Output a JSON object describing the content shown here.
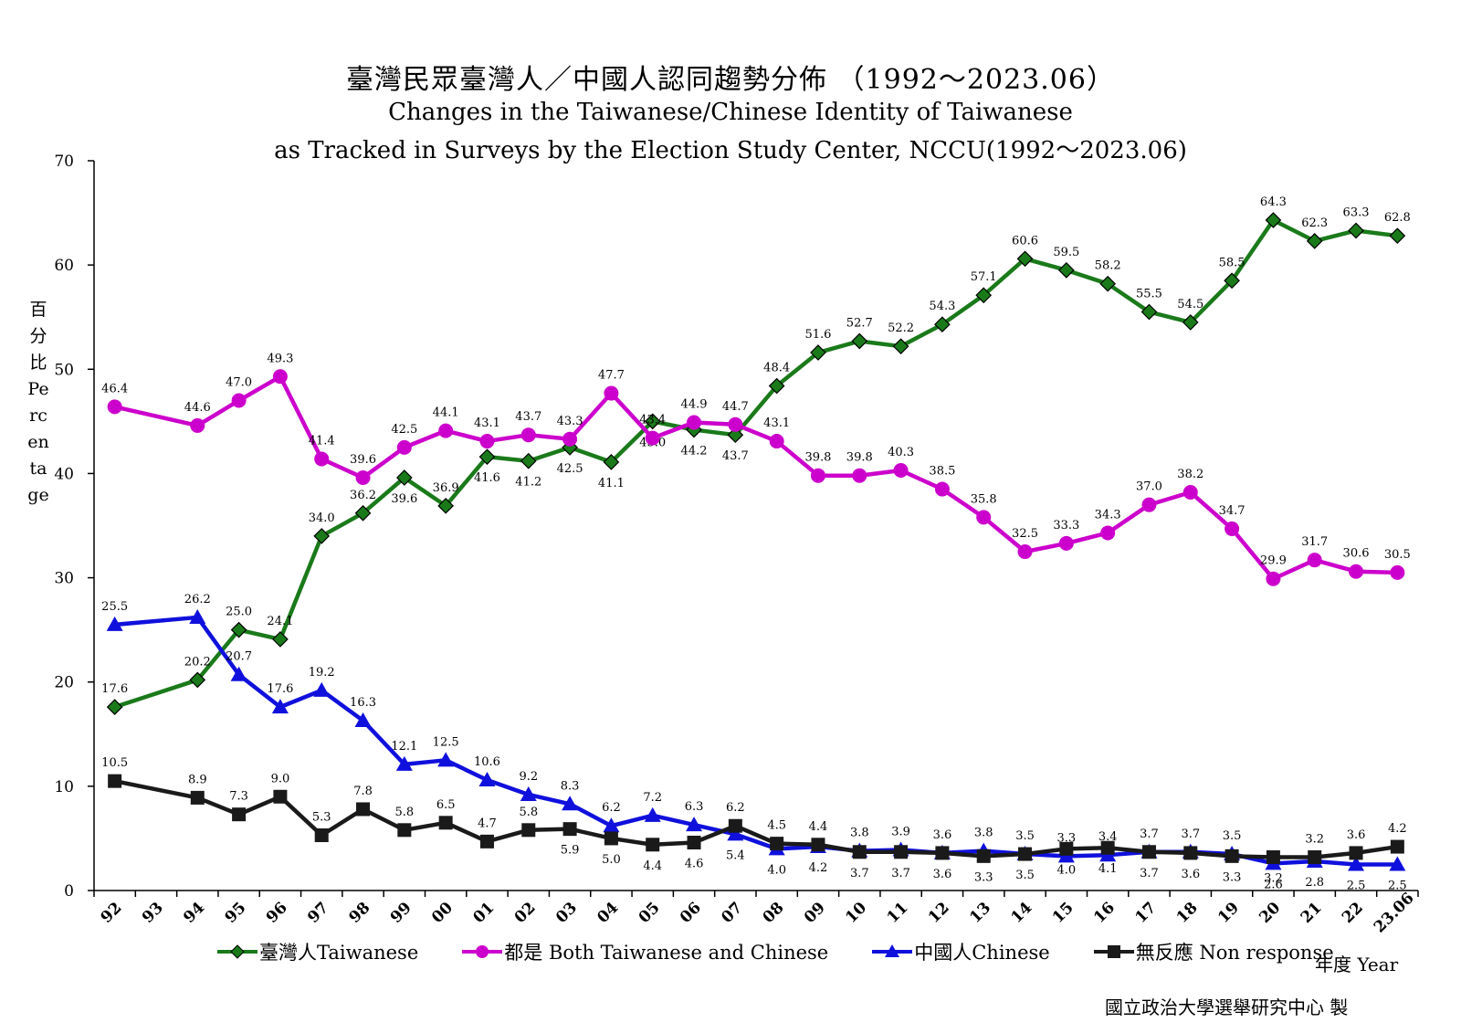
{
  "title": {
    "line1": "臺灣民眾臺灣人／中國人認同趨勢分佈 （1992～2023.06）",
    "line2": "Changes in the Taiwanese/Chinese Identity of Taiwanese",
    "line3": "as Tracked in Surveys by the Election Study Center, NCCU(1992～2023.06)"
  },
  "ylabel": "百分比Percentage",
  "xlabel": "年度 Year",
  "credit": "國立政治大學選舉研究中心 製",
  "chart_data": {
    "type": "line",
    "title": "臺灣民眾臺灣人／中國人認同趨勢分佈 （1992～2023.06）",
    "xlabel": "年度 Year",
    "ylabel": "百分比Percentage",
    "categories": [
      "92",
      "93",
      "94",
      "95",
      "96",
      "97",
      "98",
      "99",
      "00",
      "01",
      "02",
      "03",
      "04",
      "05",
      "06",
      "07",
      "08",
      "09",
      "10",
      "11",
      "12",
      "13",
      "14",
      "15",
      "16",
      "17",
      "18",
      "19",
      "20",
      "21",
      "22",
      "23.06"
    ],
    "ylim": [
      0,
      70
    ],
    "yticks": [
      "0",
      "10",
      "20",
      "30",
      "40",
      "50",
      "60",
      "70"
    ],
    "grid": false,
    "legend_position": "bottom",
    "series": [
      {
        "name": "臺灣人Taiwanese",
        "color": "#1a7a1a",
        "marker": "diamond",
        "values": [
          17.6,
          null,
          20.2,
          25.0,
          24.1,
          34.0,
          36.2,
          39.6,
          36.9,
          41.6,
          41.2,
          42.5,
          41.1,
          45.0,
          44.2,
          43.7,
          48.4,
          51.6,
          52.7,
          52.2,
          54.3,
          57.1,
          60.6,
          59.5,
          58.2,
          55.5,
          54.5,
          58.5,
          64.3,
          62.3,
          63.3,
          62.8
        ],
        "labels": [
          "17.6",
          null,
          "20.2",
          "25.0",
          "24.1",
          "34.0",
          "36.2",
          "39.6",
          "36.9",
          "41.6",
          "41.2",
          "42.5",
          "41.1",
          "45.0",
          "44.2",
          "43.7",
          "48.4",
          "51.6",
          "52.7",
          "52.2",
          "54.3",
          "57.1",
          "60.6",
          "59.5",
          "58.2",
          "55.5",
          "54.5",
          "58.5",
          "64.3",
          "62.3",
          "63.3",
          "62.8"
        ]
      },
      {
        "name": "都是 Both Taiwanese and Chinese",
        "color": "#cc00cc",
        "marker": "circle",
        "values": [
          46.4,
          null,
          44.6,
          47.0,
          49.3,
          41.4,
          39.6,
          42.5,
          44.1,
          43.1,
          43.7,
          43.3,
          47.7,
          43.4,
          44.9,
          44.7,
          43.1,
          39.8,
          39.8,
          40.3,
          38.5,
          35.8,
          32.5,
          33.3,
          34.3,
          37.0,
          38.2,
          34.7,
          29.9,
          31.7,
          30.6,
          30.5
        ],
        "labels": [
          "46.4",
          null,
          "44.6",
          "47.0",
          "49.3",
          "41.4",
          "39.6",
          "42.5",
          "44.1",
          "43.1",
          "43.7",
          "43.3",
          "47.7",
          "43.4",
          "44.9",
          "44.7",
          "43.1",
          "39.8",
          "39.8",
          "40.3",
          "38.5",
          "35.8",
          "32.5",
          "33.3",
          "34.3",
          "37.0",
          "38.2",
          "34.7",
          "29.9",
          "31.7",
          "30.6",
          "30.5"
        ]
      },
      {
        "name": "中國人Chinese",
        "color": "#1010dd",
        "marker": "triangle",
        "values": [
          25.5,
          null,
          26.2,
          20.7,
          17.6,
          19.2,
          16.3,
          12.1,
          12.5,
          10.6,
          9.2,
          8.3,
          6.2,
          7.2,
          6.3,
          5.4,
          4.0,
          4.2,
          3.8,
          3.9,
          3.6,
          3.8,
          3.5,
          3.3,
          3.4,
          3.7,
          3.7,
          3.5,
          2.6,
          2.8,
          2.5,
          2.5
        ],
        "labels": [
          "25.5",
          null,
          "26.2",
          "20.7",
          "17.6",
          "19.2",
          "16.3",
          "12.1",
          "12.5",
          "10.6",
          "9.2",
          "8.3",
          "6.2",
          "7.2",
          "6.3",
          "5.4",
          "4.0",
          "4.2",
          "3.8",
          "3.9",
          "3.6",
          "3.8",
          "3.5",
          "3.3",
          "3.4",
          "3.7",
          "3.7",
          "3.5",
          "2.6",
          "2.8",
          "2.5",
          "2.5"
        ]
      },
      {
        "name": "無反應 Non response",
        "color": "#1a1a1a",
        "marker": "square",
        "values": [
          10.5,
          null,
          8.9,
          7.3,
          9.0,
          5.3,
          7.8,
          5.8,
          6.5,
          4.7,
          5.8,
          5.9,
          5.0,
          4.4,
          4.6,
          6.2,
          4.5,
          4.4,
          3.7,
          3.7,
          3.6,
          3.3,
          3.5,
          4.0,
          4.1,
          3.7,
          3.6,
          3.3,
          3.2,
          3.2,
          3.6,
          4.2
        ],
        "labels": [
          "10.5",
          null,
          "8.9",
          "7.3",
          "9.0",
          "5.3",
          "7.8",
          "5.8",
          "6.5",
          "4.7",
          "5.8",
          "5.9",
          "5.0",
          "4.4",
          "4.6",
          "6.2",
          "4.5",
          "4.4",
          "3.7",
          "3.7",
          "3.6",
          "3.3",
          "3.5",
          "4.0",
          "4.1",
          "3.7",
          "3.6",
          "3.3",
          "3.2",
          "3.2",
          "3.6",
          "4.2"
        ]
      }
    ]
  }
}
